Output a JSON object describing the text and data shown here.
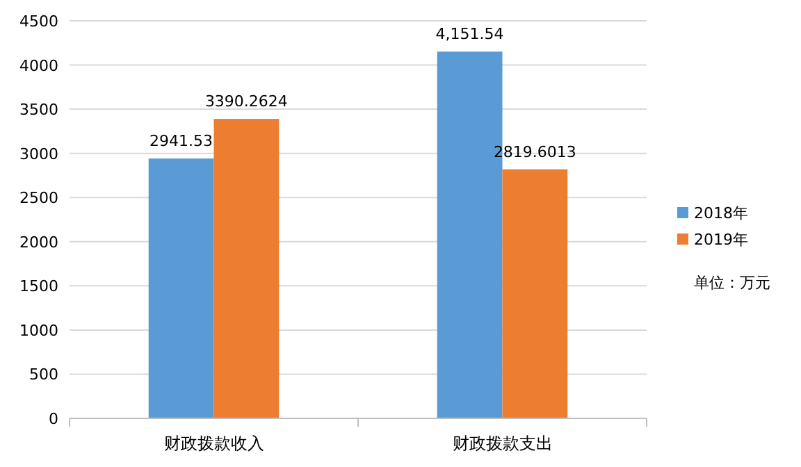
{
  "chart_data": {
    "type": "bar",
    "categories": [
      "财政拨款收入",
      "财政拨款支出"
    ],
    "series": [
      {
        "name": "2018年",
        "color": "#5b9bd5",
        "values": [
          2941.53,
          4151.54
        ],
        "value_labels": [
          "2941.53",
          "4,151.54"
        ]
      },
      {
        "name": "2019年",
        "color": "#ed7d31",
        "values": [
          3390.2624,
          2819.6013
        ],
        "value_labels": [
          "3390.2624",
          "2819.6013"
        ]
      }
    ],
    "ylim": [
      0,
      4500
    ],
    "yticks": [
      0,
      500,
      1000,
      1500,
      2000,
      2500,
      3000,
      3500,
      4000,
      4500
    ],
    "grid": "y",
    "legend": "right",
    "annotations": [
      "单位：万元"
    ]
  }
}
